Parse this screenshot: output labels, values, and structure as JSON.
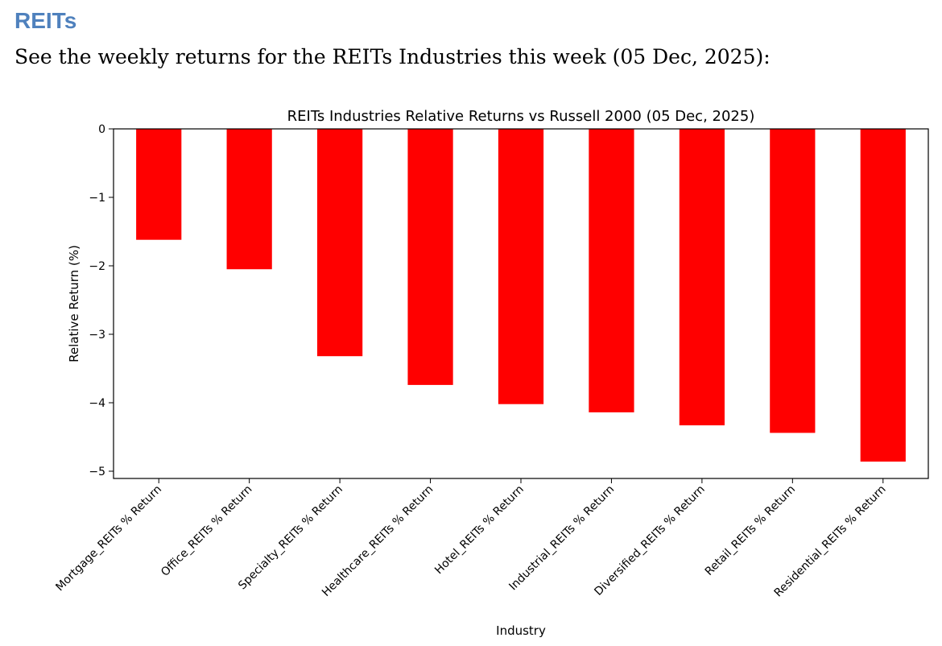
{
  "section": {
    "heading": "REITs",
    "intro": "See the weekly returns for the REITs Industries this week (05 Dec, 2025):"
  },
  "colors": {
    "heading": "#4f81bd",
    "bar": "#ff0000",
    "axis": "#000000"
  },
  "chart_data": {
    "type": "bar",
    "title": "REITs Industries Relative Returns vs Russell 2000 (05 Dec, 2025)",
    "xlabel": "Industry",
    "ylabel": "Relative Return (%)",
    "ylim": [
      -5.1,
      0
    ],
    "yticks": [
      0,
      -1,
      -2,
      -3,
      -4,
      -5
    ],
    "ytick_labels": [
      "0",
      "−1",
      "−2",
      "−3",
      "−4",
      "−5"
    ],
    "categories": [
      "Mortgage_REITs % Return",
      "Office_REITs % Return",
      "Specialty_REITs % Return",
      "Healthcare_REITs % Return",
      "Hotel_REITs % Return",
      "Industrial_REITs % Return",
      "Diversified_REITs % Return",
      "Retail_REITs % Return",
      "Residential_REITs % Return"
    ],
    "values": [
      -1.62,
      -2.05,
      -3.32,
      -3.74,
      -4.02,
      -4.14,
      -4.33,
      -4.44,
      -4.86
    ],
    "grid": false,
    "legend": false
  }
}
